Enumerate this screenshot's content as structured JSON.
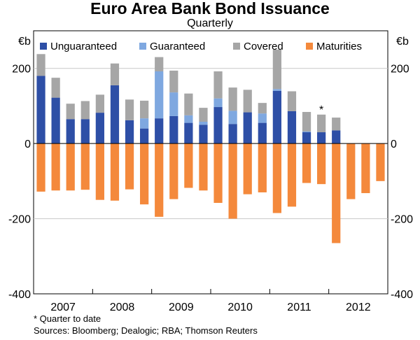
{
  "chart_data": {
    "type": "bar",
    "stacked": true,
    "title": "Euro Area Bank Bond Issuance",
    "subtitle": "Quarterly",
    "left_unit": "€b",
    "right_unit": "€b",
    "ylim": [
      -400,
      300
    ],
    "yticks": [
      -400,
      -200,
      0,
      200
    ],
    "ytick_labels": [
      "-400",
      "-200",
      "0",
      "200"
    ],
    "grid": true,
    "year_labels": [
      "2007",
      "2008",
      "2009",
      "2010",
      "2011",
      "2012"
    ],
    "categories": [
      "2007 Q1",
      "2007 Q2",
      "2007 Q3",
      "2007 Q4",
      "2008 Q1",
      "2008 Q2",
      "2008 Q3",
      "2008 Q4",
      "2009 Q1",
      "2009 Q2",
      "2009 Q3",
      "2009 Q4",
      "2010 Q1",
      "2010 Q2",
      "2010 Q3",
      "2010 Q4",
      "2011 Q1",
      "2011 Q2",
      "2011 Q3",
      "2011 Q4",
      "2012 Q1",
      "2012 Q2",
      "2012 Q3",
      "2012 Q4"
    ],
    "series": [
      {
        "name": "Unguaranteed",
        "color": "#2e4fa6",
        "values": [
          180,
          122,
          65,
          65,
          82,
          155,
          62,
          40,
          67,
          73,
          55,
          50,
          97,
          52,
          83,
          55,
          140,
          86,
          30,
          30,
          35,
          0,
          0,
          0
        ]
      },
      {
        "name": "Guaranteed",
        "color": "#7fa8e0",
        "values": [
          0,
          0,
          0,
          0,
          0,
          0,
          0,
          27,
          125,
          63,
          20,
          8,
          23,
          35,
          0,
          25,
          5,
          0,
          2,
          0,
          0,
          0,
          0,
          0
        ]
      },
      {
        "name": "Covered",
        "color": "#a6a6a6",
        "values": [
          58,
          53,
          41,
          48,
          48,
          58,
          55,
          47,
          38,
          58,
          58,
          37,
          72,
          62,
          60,
          28,
          105,
          53,
          52,
          47,
          34,
          0,
          0,
          0
        ]
      },
      {
        "name": "Maturities",
        "color": "#f4893c",
        "values": [
          -128,
          -125,
          -125,
          -123,
          -150,
          -152,
          -122,
          -162,
          -195,
          -148,
          -118,
          -125,
          -158,
          -200,
          -135,
          -130,
          -185,
          -168,
          -105,
          -108,
          -265,
          -148,
          -132,
          -100
        ]
      }
    ],
    "annotation": {
      "text": "*",
      "category": "2011 Q4"
    },
    "legend": {
      "placement": "top",
      "labels": [
        "Unguaranteed",
        "Guaranteed",
        "Covered",
        "Maturities"
      ]
    }
  },
  "footnote": "*     Quarter to date",
  "sources": "Sources: Bloomberg; Dealogic; RBA; Thomson Reuters"
}
